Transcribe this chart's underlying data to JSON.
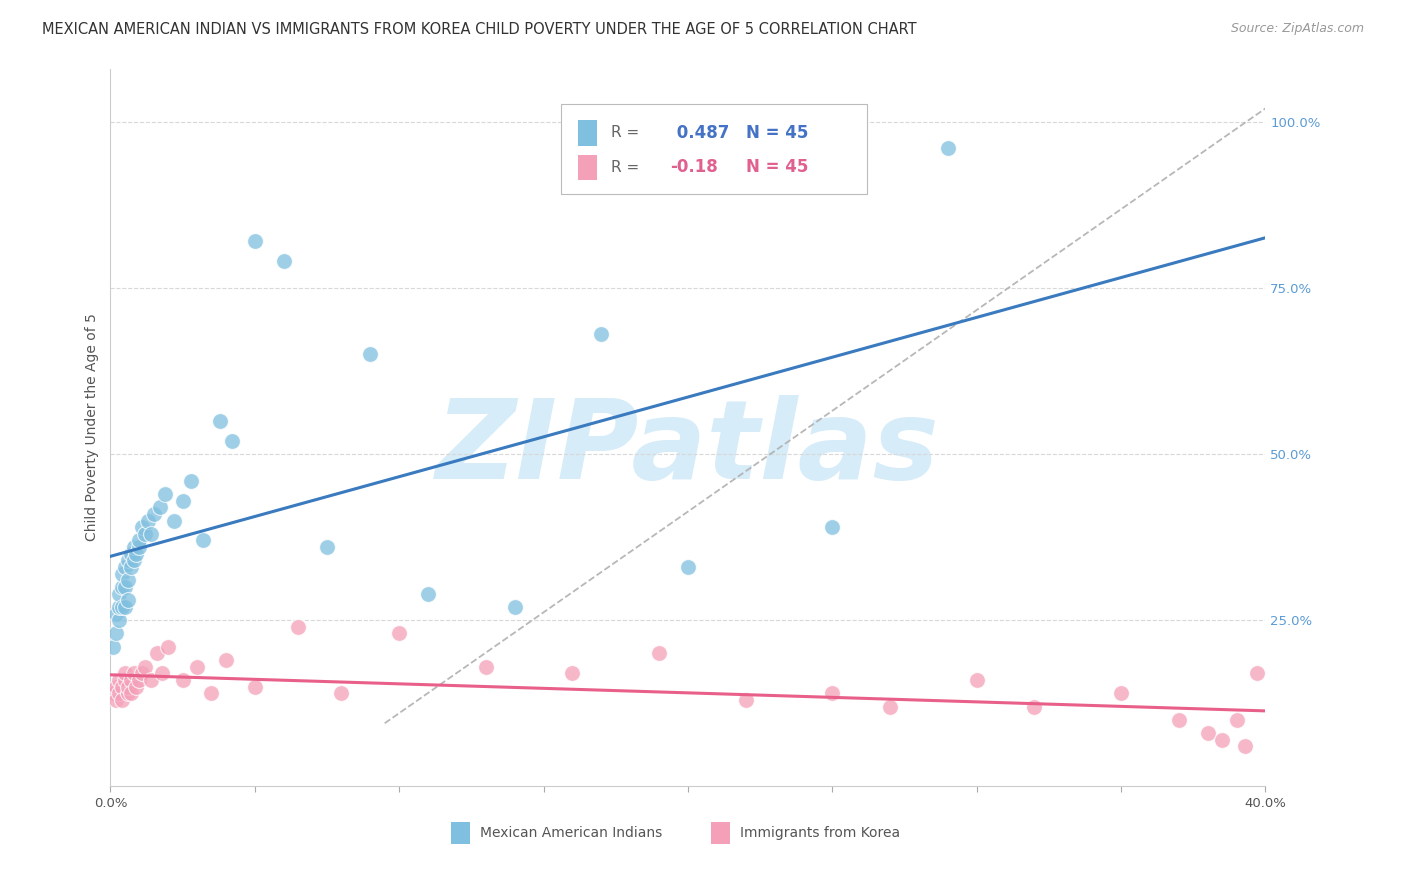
{
  "title": "MEXICAN AMERICAN INDIAN VS IMMIGRANTS FROM KOREA CHILD POVERTY UNDER THE AGE OF 5 CORRELATION CHART",
  "source": "Source: ZipAtlas.com",
  "ylabel": "Child Poverty Under the Age of 5",
  "R1": 0.487,
  "R2": -0.18,
  "N1": 45,
  "N2": 45,
  "color1": "#7fbfdf",
  "color2": "#f4a0b8",
  "color1_line": "#3a7abf",
  "color2_line": "#e8608a",
  "color1_legend": "#4472c4",
  "color2_legend": "#e06090",
  "xlim": [
    0.0,
    0.4
  ],
  "ylim": [
    0.0,
    1.08
  ],
  "x_ticks": [
    0.0,
    0.05,
    0.1,
    0.15,
    0.2,
    0.25,
    0.3,
    0.35,
    0.4
  ],
  "x_tick_labels_show": [
    "0.0%",
    "",
    "",
    "",
    "",
    "",
    "",
    "",
    "40.0%"
  ],
  "y_ticks": [
    0.25,
    0.5,
    0.75,
    1.0
  ],
  "y_tick_labels_right": [
    "25.0%",
    "50.0%",
    "75.0%",
    "100.0%"
  ],
  "legend_label1": "Mexican American Indians",
  "legend_label2": "Immigrants from Korea",
  "blue_x": [
    0.001,
    0.002,
    0.002,
    0.003,
    0.003,
    0.003,
    0.004,
    0.004,
    0.004,
    0.005,
    0.005,
    0.005,
    0.006,
    0.006,
    0.006,
    0.007,
    0.007,
    0.008,
    0.008,
    0.009,
    0.01,
    0.01,
    0.011,
    0.012,
    0.013,
    0.014,
    0.015,
    0.017,
    0.019,
    0.022,
    0.025,
    0.028,
    0.032,
    0.038,
    0.042,
    0.05,
    0.06,
    0.075,
    0.09,
    0.11,
    0.14,
    0.17,
    0.2,
    0.25,
    0.29
  ],
  "blue_y": [
    0.21,
    0.23,
    0.26,
    0.25,
    0.27,
    0.29,
    0.27,
    0.3,
    0.32,
    0.27,
    0.3,
    0.33,
    0.31,
    0.34,
    0.28,
    0.35,
    0.33,
    0.34,
    0.36,
    0.35,
    0.36,
    0.37,
    0.39,
    0.38,
    0.4,
    0.38,
    0.41,
    0.42,
    0.44,
    0.4,
    0.43,
    0.46,
    0.37,
    0.55,
    0.52,
    0.82,
    0.79,
    0.36,
    0.65,
    0.29,
    0.27,
    0.68,
    0.33,
    0.39,
    0.96
  ],
  "pink_x": [
    0.001,
    0.002,
    0.002,
    0.003,
    0.003,
    0.004,
    0.004,
    0.005,
    0.005,
    0.006,
    0.006,
    0.007,
    0.007,
    0.008,
    0.009,
    0.01,
    0.011,
    0.012,
    0.014,
    0.016,
    0.018,
    0.02,
    0.025,
    0.03,
    0.035,
    0.04,
    0.05,
    0.065,
    0.08,
    0.1,
    0.13,
    0.16,
    0.19,
    0.22,
    0.25,
    0.27,
    0.3,
    0.32,
    0.35,
    0.37,
    0.38,
    0.385,
    0.39,
    0.393,
    0.397
  ],
  "pink_y": [
    0.14,
    0.15,
    0.13,
    0.16,
    0.14,
    0.15,
    0.13,
    0.16,
    0.17,
    0.14,
    0.15,
    0.16,
    0.14,
    0.17,
    0.15,
    0.16,
    0.17,
    0.18,
    0.16,
    0.2,
    0.17,
    0.21,
    0.16,
    0.18,
    0.14,
    0.19,
    0.15,
    0.24,
    0.14,
    0.23,
    0.18,
    0.17,
    0.2,
    0.13,
    0.14,
    0.12,
    0.16,
    0.12,
    0.14,
    0.1,
    0.08,
    0.07,
    0.1,
    0.06,
    0.17
  ],
  "watermark": "ZIPatlas",
  "watermark_color": "#d6ecf8",
  "background_color": "#ffffff",
  "grid_color": "#d8d8d8",
  "title_fontsize": 10.5,
  "axis_label_fontsize": 10,
  "tick_fontsize": 9.5,
  "legend_fontsize": 11,
  "source_fontsize": 9
}
